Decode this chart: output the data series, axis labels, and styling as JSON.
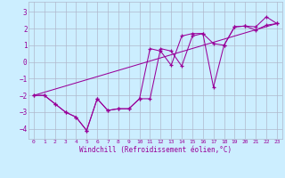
{
  "xlabel": "Windchill (Refroidissement éolien,°C)",
  "bg_color": "#cceeff",
  "grid_color": "#b0b8cc",
  "line_color": "#990099",
  "xlim": [
    -0.5,
    23.5
  ],
  "ylim": [
    -4.6,
    3.6
  ],
  "yticks": [
    -4,
    -3,
    -2,
    -1,
    0,
    1,
    2,
    3
  ],
  "xticks": [
    0,
    1,
    2,
    3,
    4,
    5,
    6,
    7,
    8,
    9,
    10,
    11,
    12,
    13,
    14,
    15,
    16,
    17,
    18,
    19,
    20,
    21,
    22,
    23
  ],
  "series1_x": [
    0,
    1,
    2,
    3,
    4,
    5,
    6,
    7,
    8,
    9,
    10,
    11,
    12,
    13,
    14,
    15,
    16,
    17,
    18,
    19,
    20,
    21,
    22,
    23
  ],
  "series1_y": [
    -2.0,
    -2.0,
    -2.5,
    -3.0,
    -3.3,
    -4.1,
    -2.2,
    -2.9,
    -2.8,
    -2.8,
    -2.2,
    0.8,
    0.65,
    -0.2,
    1.55,
    1.7,
    1.7,
    1.1,
    1.0,
    2.1,
    2.15,
    1.9,
    2.2,
    2.3
  ],
  "series2_x": [
    0,
    23
  ],
  "series2_y": [
    -2.0,
    2.3
  ],
  "series3_x": [
    0,
    1,
    2,
    3,
    4,
    5,
    6,
    7,
    8,
    9,
    10,
    11,
    12,
    13,
    14,
    15,
    16,
    17,
    18,
    19,
    20,
    21,
    22,
    23
  ],
  "series3_y": [
    -2.0,
    -2.0,
    -2.5,
    -3.0,
    -3.3,
    -4.1,
    -2.2,
    -2.9,
    -2.8,
    -2.8,
    -2.2,
    -2.2,
    0.8,
    0.65,
    -0.25,
    1.55,
    1.7,
    -1.5,
    1.0,
    2.1,
    2.15,
    2.1,
    2.7,
    2.3
  ]
}
